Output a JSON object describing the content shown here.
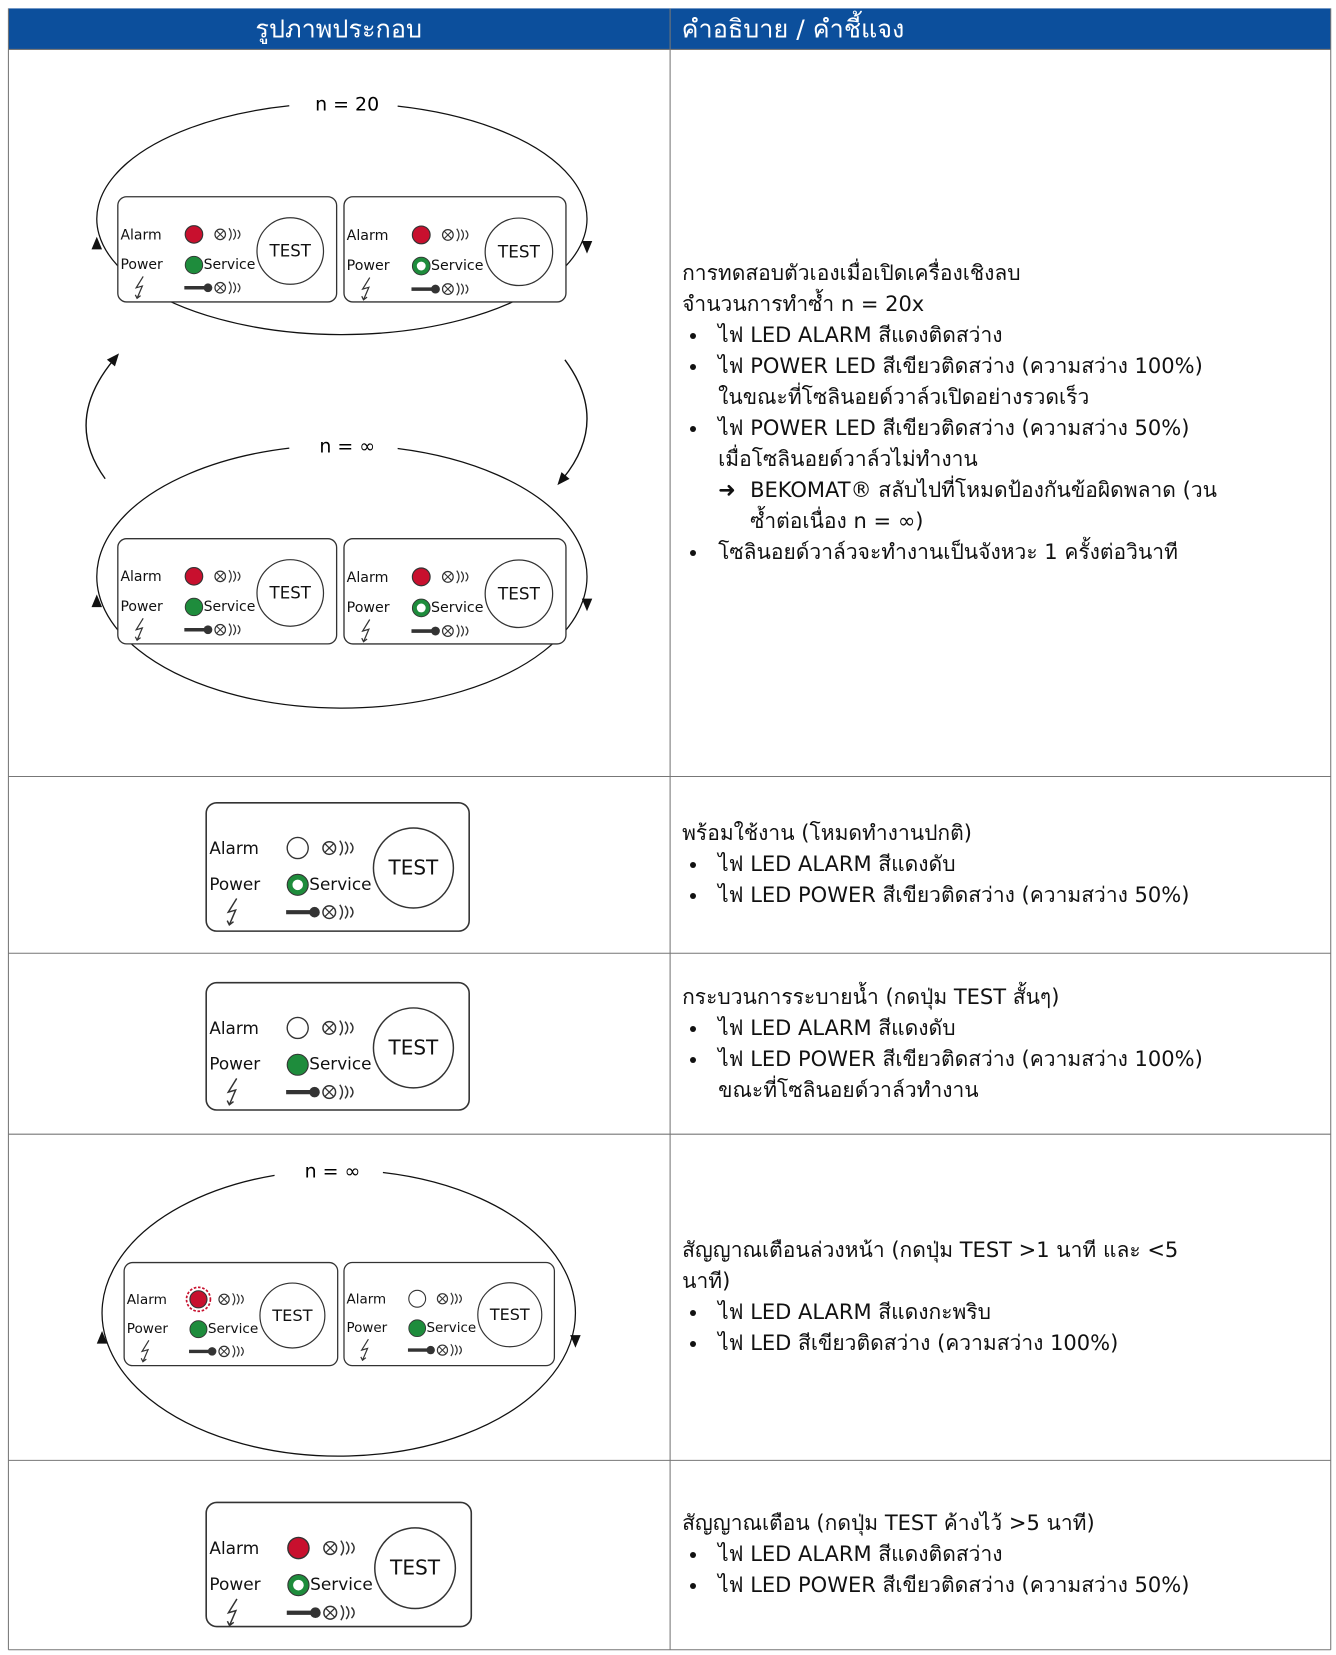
{
  "header": {
    "col1": "รูปภาพประกอบ",
    "col2": "คำอธิบาย / คำชี้แจง"
  },
  "panel_labels": {
    "alarm": "Alarm",
    "power": "Power",
    "service": "Service",
    "test": "TEST"
  },
  "rows": [
    {
      "cycles": [
        "n = 20",
        "n = ∞"
      ],
      "intro": [
        "การทดสอบตัวเองเมื่อเปิดเครื่องเชิงลบ",
        "จำนวนการทำซ้ำ n = 20x"
      ],
      "bullets": [
        {
          "lines": [
            "ไฟ LED ALARM สีแดงติดสว่าง"
          ]
        },
        {
          "lines": [
            "ไฟ POWER LED สีเขียวติดสว่าง (ความสว่าง 100%)",
            "ในขณะที่โซลินอยด์วาล์วเปิดอย่างรวดเร็ว"
          ]
        },
        {
          "lines": [
            "ไฟ POWER LED สีเขียวติดสว่าง (ความสว่าง 50%)",
            "เมื่อโซลินอยด์วาล์วไม่ทำงาน"
          ],
          "sub": {
            "arrow": "➜",
            "lines": [
              "BEKOMAT® สลับไปที่โหมดป้องกันข้อผิดพลาด (วน",
              "ซ้ำต่อเนื่อง n = ∞)"
            ]
          }
        },
        {
          "lines": [
            "โซลินอยด์วาล์วจะทำงานเป็นจังหวะ 1 ครั้งต่อวินาที"
          ]
        }
      ]
    },
    {
      "intro": [
        "พร้อมใช้งาน (โหมดทำงานปกติ)"
      ],
      "bullets": [
        {
          "lines": [
            "ไฟ LED ALARM สีแดงดับ"
          ]
        },
        {
          "lines": [
            "ไฟ LED POWER สีเขียวติดสว่าง (ความสว่าง 50%)"
          ]
        }
      ]
    },
    {
      "intro": [
        "กระบวนการระบายน้ำ (กดปุ่ม TEST สั้นๆ)"
      ],
      "bullets": [
        {
          "lines": [
            "ไฟ LED ALARM สีแดงดับ"
          ]
        },
        {
          "lines": [
            "ไฟ LED POWER สีเขียวติดสว่าง (ความสว่าง 100%)",
            "ขณะที่โซลินอยด์วาล์วทำงาน"
          ]
        }
      ]
    },
    {
      "cycles": [
        "n = ∞"
      ],
      "intro": [
        "สัญญาณเตือนล่วงหน้า (กดปุ่ม TEST >1 นาที และ <5",
        "นาที)"
      ],
      "bullets": [
        {
          "lines": [
            "ไฟ LED ALARM สีแดงกะพริบ"
          ]
        },
        {
          "lines": [
            "ไฟ LED สีเขียวติดสว่าง (ความสว่าง 100%)"
          ]
        }
      ]
    },
    {
      "intro": [
        "สัญญาณเตือน (กดปุ่ม TEST ค้างไว้ >5 นาที)"
      ],
      "bullets": [
        {
          "lines": [
            "ไฟ LED ALARM สีแดงติดสว่าง"
          ]
        },
        {
          "lines": [
            "ไฟ LED POWER สีเขียวติดสว่าง (ความสว่าง 50%)"
          ]
        }
      ]
    }
  ]
}
